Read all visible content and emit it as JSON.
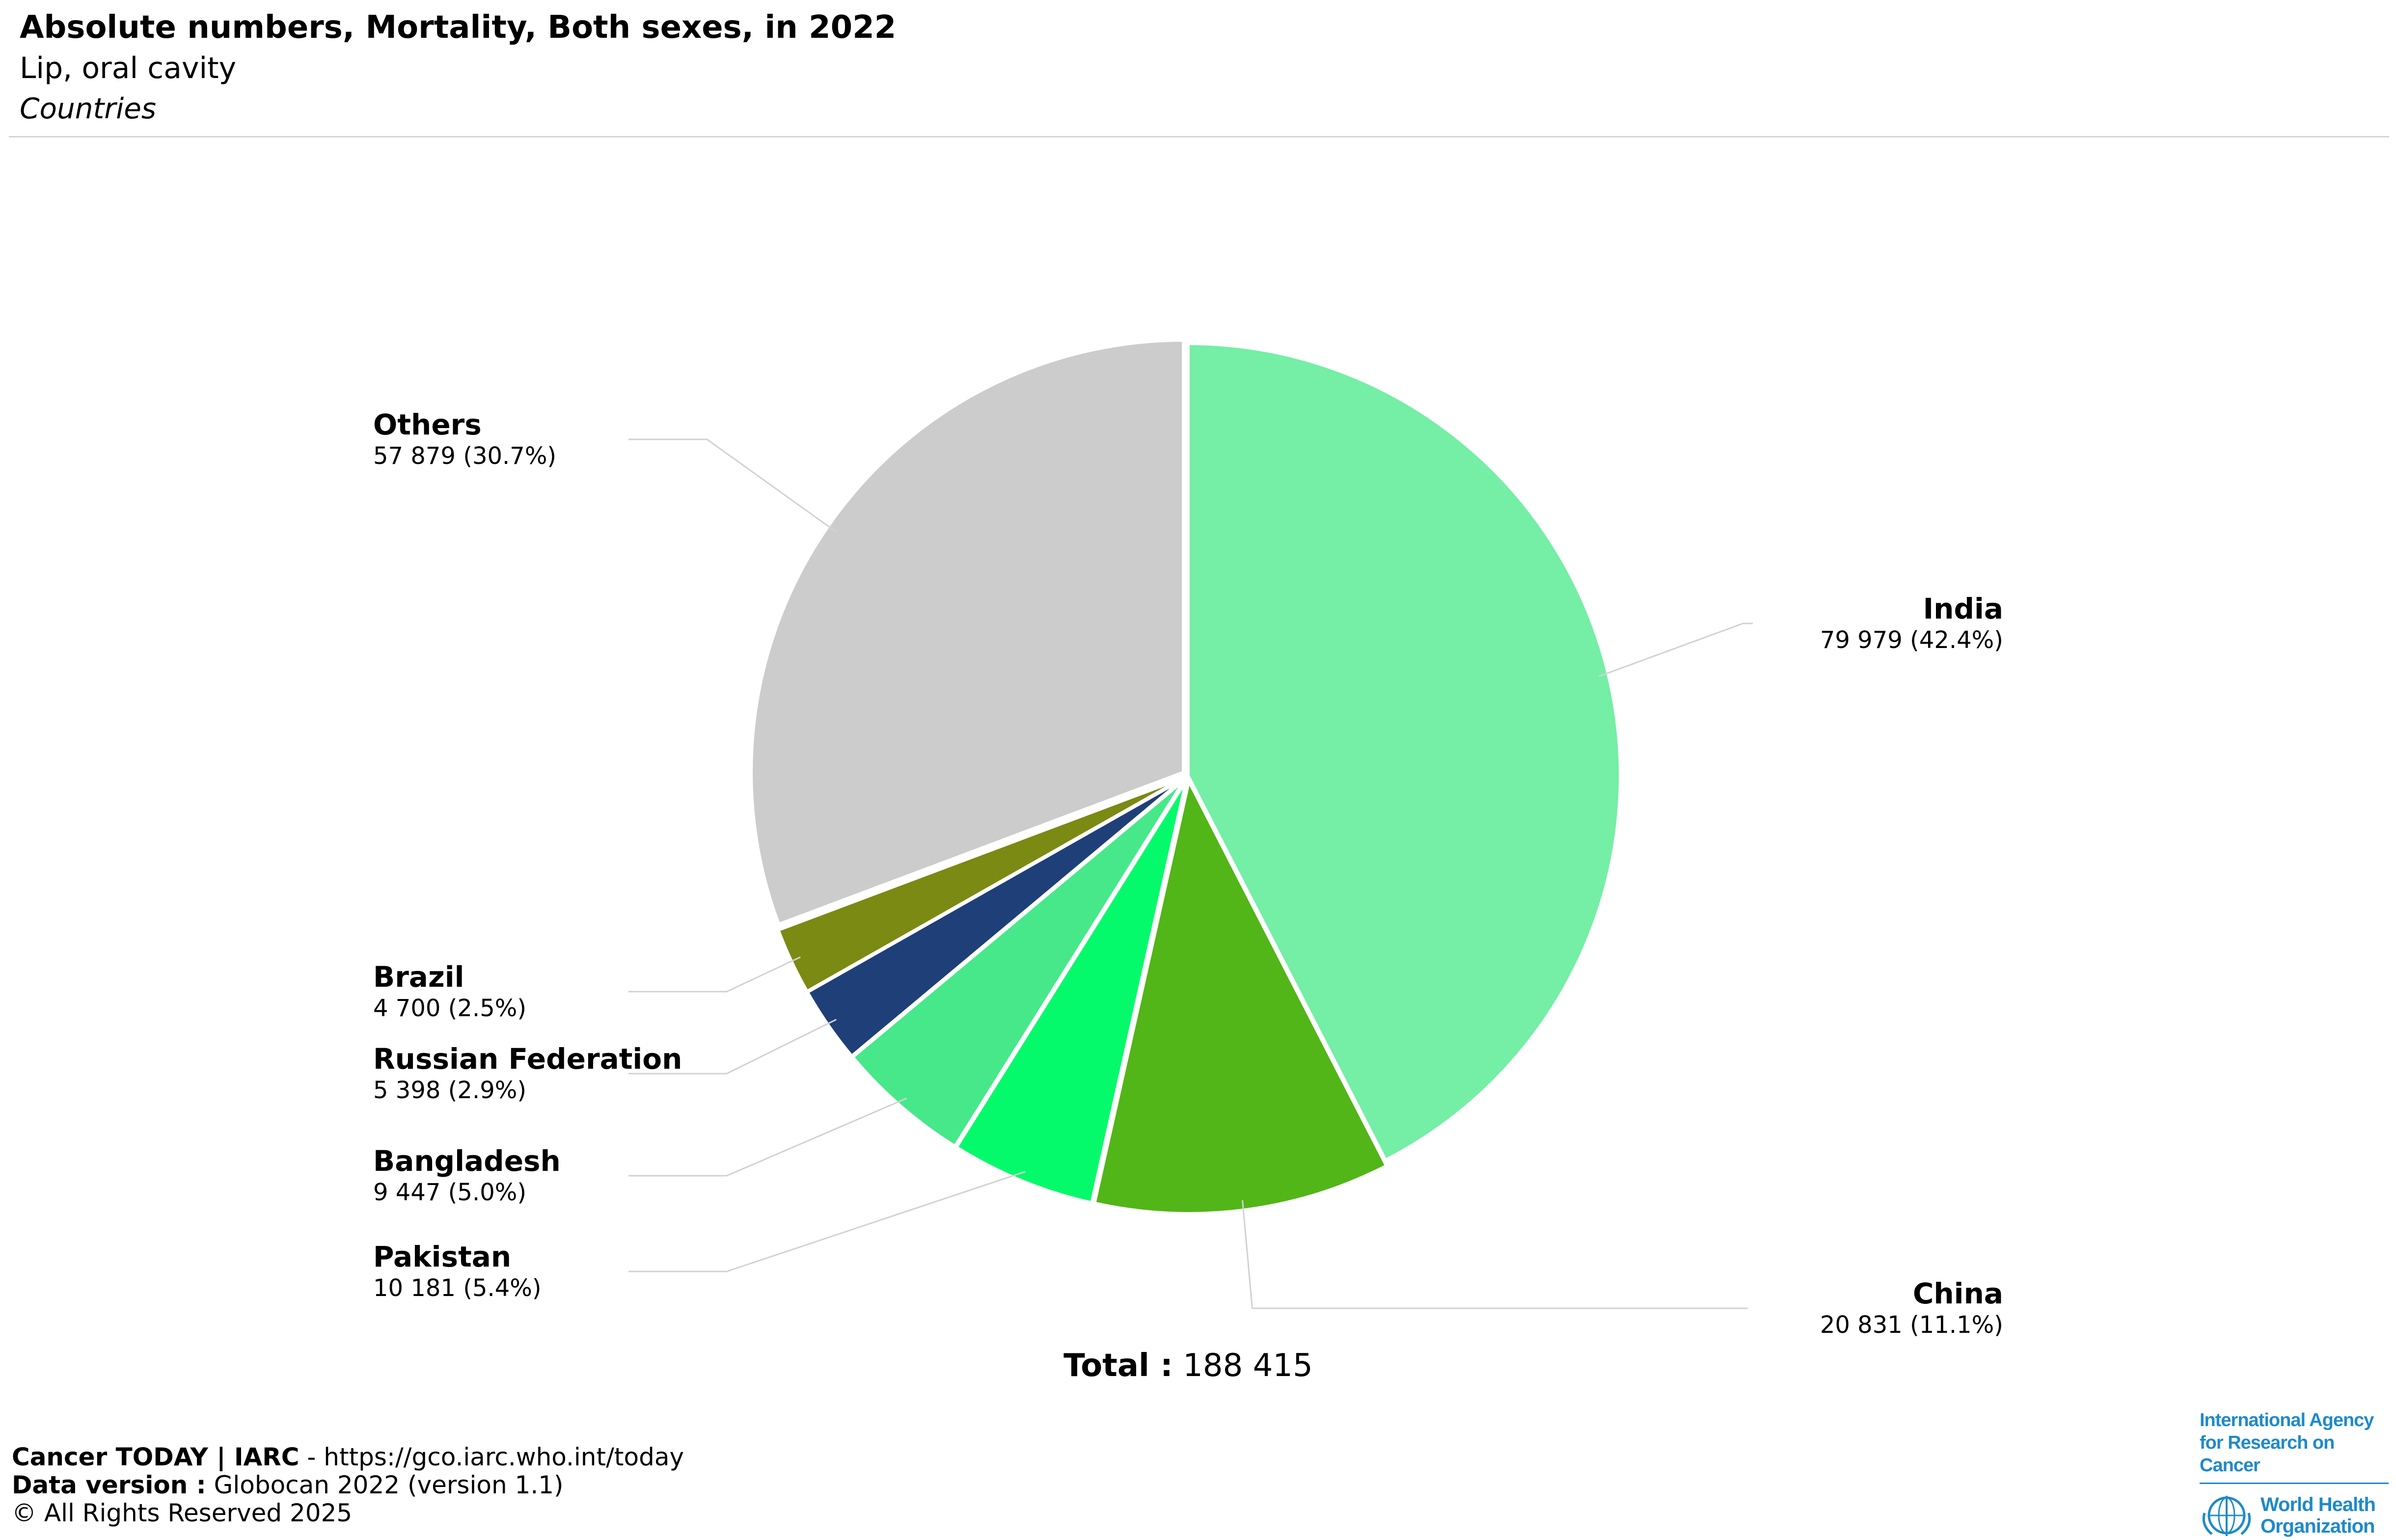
{
  "header": {
    "title": "Absolute numbers, Mortality, Both sexes, in 2022",
    "subtitle": "Lip, oral cavity",
    "scope": "Countries"
  },
  "chart_data": {
    "type": "pie",
    "title": "Absolute numbers, Mortality, Both sexes, in 2022",
    "slices": [
      {
        "label": "India",
        "value": 79979,
        "value_text": "79 979 (42.4%)",
        "percent": 42.4,
        "color": "#75eea6"
      },
      {
        "label": "China",
        "value": 20831,
        "value_text": "20 831 (11.1%)",
        "percent": 11.1,
        "color": "#52b518"
      },
      {
        "label": "Pakistan",
        "value": 10181,
        "value_text": "10 181 (5.4%)",
        "percent": 5.4,
        "color": "#05fa6b"
      },
      {
        "label": "Bangladesh",
        "value": 9447,
        "value_text": "9 447 (5.0%)",
        "percent": 5.0,
        "color": "#46e88a"
      },
      {
        "label": "Russian Federation",
        "value": 5398,
        "value_text": "5 398 (2.9%)",
        "percent": 2.9,
        "color": "#1f3f78"
      },
      {
        "label": "Brazil",
        "value": 4700,
        "value_text": "4 700 (2.5%)",
        "percent": 2.5,
        "color": "#7a8a12"
      },
      {
        "label": "Others",
        "value": 57879,
        "value_text": "57 879 (30.7%)",
        "percent": 30.7,
        "color": "#cccccc"
      }
    ],
    "total_label": "Total :",
    "total_value": "188 415"
  },
  "footer": {
    "line1_bold": "Cancer TODAY | IARC",
    "line1_rest": " - https://gco.iarc.who.int/today",
    "line2_bold": "Data version :",
    "line2_rest": " Globocan 2022 (version 1.1)",
    "line3": "© All Rights Reserved 2025"
  },
  "logos": {
    "iarc_line1": "International Agency",
    "iarc_line2": "for Research on Cancer",
    "who_line1": "World Health",
    "who_line2": "Organization",
    "logo_color": "#1f8ac9"
  }
}
